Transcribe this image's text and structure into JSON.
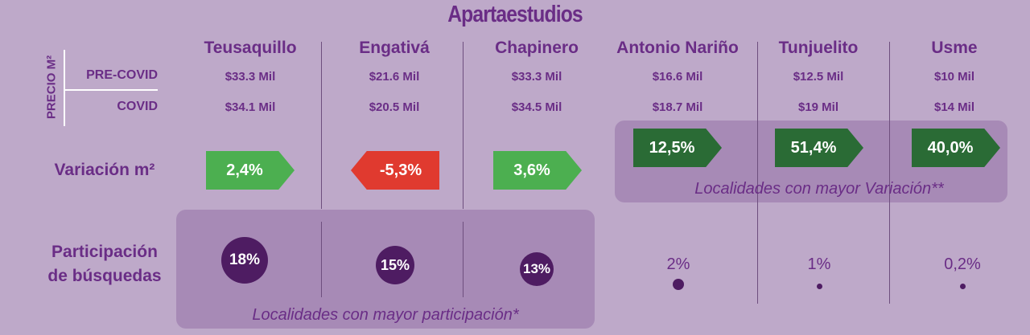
{
  "title": "Apartaestudios",
  "axis_label": "PRECIO M²",
  "row_labels": {
    "pre_covid": "PRE-COVID",
    "covid": "COVID",
    "variacion": "Variación m²",
    "participacion_1": "Participación",
    "participacion_2": "de búsquedas"
  },
  "localidades": [
    {
      "name": "Teusaquillo",
      "pre": "$33.3 Mil",
      "covid": "$34.1 Mil",
      "variacion": "2,4%",
      "participacion": "18%"
    },
    {
      "name": "Engativá",
      "pre": "$21.6 Mil",
      "covid": "$20.5 Mil",
      "variacion": "-5,3%",
      "participacion": "15%"
    },
    {
      "name": "Chapinero",
      "pre": "$33.3 Mil",
      "covid": "$34.5 Mil",
      "variacion": "3,6%",
      "participacion": "13%"
    },
    {
      "name": "Antonio Nariño",
      "pre": "$16.6 Mil",
      "covid": "$18.7 Mil",
      "variacion": "12,5%",
      "participacion": "2%"
    },
    {
      "name": "Tunjuelito",
      "pre": "$12.5 Mil",
      "covid": "$19 Mil",
      "variacion": "51,4%",
      "participacion": "1%"
    },
    {
      "name": "Usme",
      "pre": "$10 Mil",
      "covid": "$14 Mil",
      "variacion": "40,0%",
      "participacion": "0,2%"
    }
  ],
  "notes": {
    "variacion": "Localidades con mayor Variación**",
    "participacion": "Localidades con mayor participación*"
  },
  "colors": {
    "green": "#4caf50",
    "red": "#e03a2f",
    "dark_green": "#2a6b35",
    "purple": "#6a2d86"
  }
}
